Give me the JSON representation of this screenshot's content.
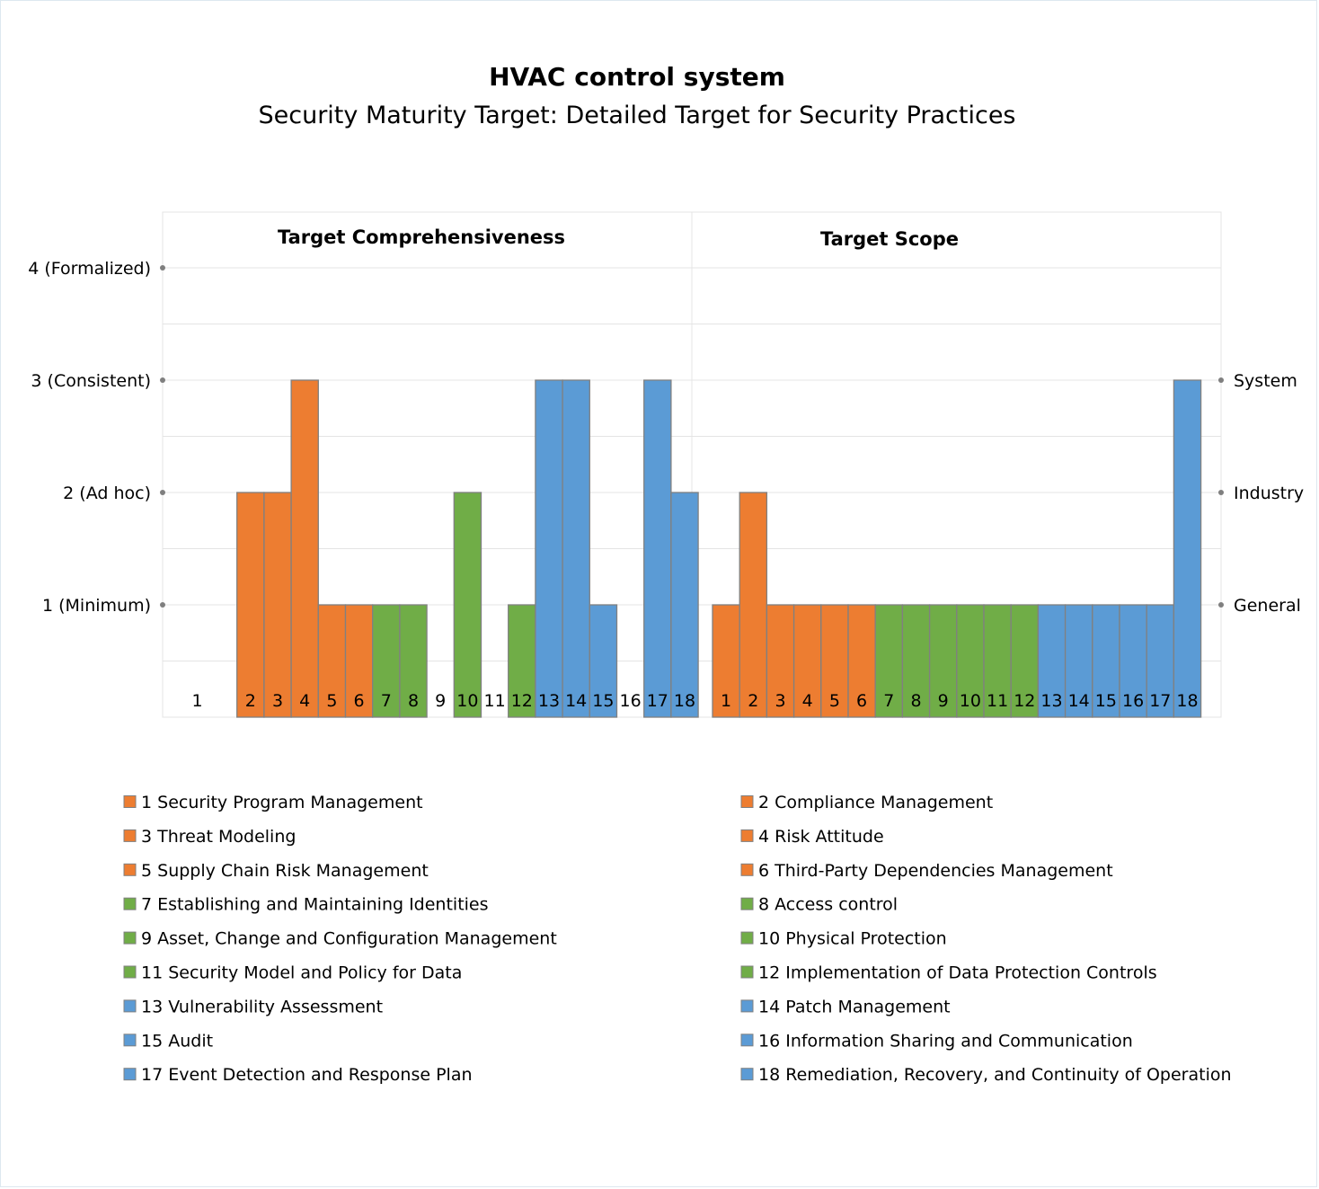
{
  "colors": {
    "governance": "#ED7D31",
    "enabling": "#70AD47",
    "hardening": "#5B9BD5",
    "bar_border": "#808080",
    "grid": "#e4e4e4",
    "tick_dot": "#7f7f7f"
  },
  "chart_data": {
    "type": "bar",
    "title": "HVAC control system",
    "subtitle": "Security Maturity Target: Detailed Target for Security Practices",
    "categories": [
      "1",
      "2",
      "3",
      "4",
      "5",
      "6",
      "7",
      "8",
      "9",
      "10",
      "11",
      "12",
      "13",
      "14",
      "15",
      "16",
      "17",
      "18"
    ],
    "category_groups": [
      "governance",
      "governance",
      "governance",
      "governance",
      "governance",
      "governance",
      "enabling",
      "enabling",
      "enabling",
      "enabling",
      "enabling",
      "enabling",
      "hardening",
      "hardening",
      "hardening",
      "hardening",
      "hardening",
      "hardening"
    ],
    "panels": [
      {
        "title": "Target Comprehensiveness",
        "values": [
          0,
          2,
          2,
          3,
          1,
          1,
          1,
          1,
          0,
          2,
          0,
          1,
          3,
          3,
          1,
          0,
          3,
          2
        ],
        "ylim": [
          0,
          4
        ],
        "y_tick_labels": [
          "1 (Minimum)",
          "2 (Ad hoc)",
          "3 (Consistent)",
          "4 (Formalized)"
        ]
      },
      {
        "title": "Target Scope",
        "values": [
          1,
          2,
          1,
          1,
          1,
          1,
          1,
          1,
          1,
          1,
          1,
          1,
          1,
          1,
          1,
          1,
          1,
          3
        ],
        "ylim": [
          0,
          4
        ],
        "y_tick_labels": [
          "General",
          "Industry",
          "System"
        ]
      }
    ],
    "legend": {
      "placement": "bottom",
      "entries": [
        "1 Security Program Management",
        "2 Compliance Management",
        "3 Threat Modeling",
        "4 Risk Attitude",
        "5 Supply Chain Risk Management",
        "6 Third-Party Dependencies Management",
        "7 Establishing and Maintaining Identities",
        "8 Access control",
        "9 Asset, Change and Configuration Management",
        "10 Physical Protection",
        "11 Security Model and Policy for Data",
        "12 Implementation of Data Protection Controls",
        "13 Vulnerability Assessment",
        "14 Patch Management",
        "15 Audit",
        "16 Information Sharing and Communication",
        "17 Event Detection and Response Plan",
        "18 Remediation, Recovery, and Continuity of Operation"
      ]
    },
    "grid": true
  }
}
